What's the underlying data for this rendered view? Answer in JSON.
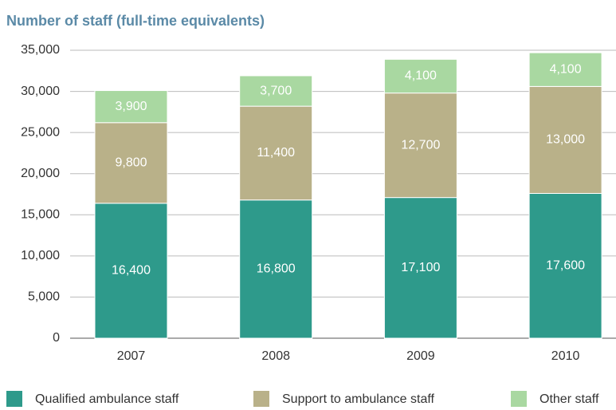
{
  "chart_data": {
    "type": "stacked_bar",
    "title": "Number of staff (full-time equivalents)",
    "categories": [
      "2007",
      "2008",
      "2009",
      "2010"
    ],
    "series": [
      {
        "name": "Qualified ambulance staff",
        "color": "#2e9a8b",
        "values": [
          16400,
          16800,
          17100,
          17600
        ],
        "value_labels": [
          "16,400",
          "16,800",
          "17,100",
          "17,600"
        ]
      },
      {
        "name": "Support to ambulance staff",
        "color": "#b9b189",
        "values": [
          9800,
          11400,
          12700,
          13000
        ],
        "value_labels": [
          "9,800",
          "11,400",
          "12,700",
          "13,000"
        ]
      },
      {
        "name": "Other staff",
        "color": "#a9d8a1",
        "values": [
          3900,
          3700,
          4100,
          4100
        ],
        "value_labels": [
          "3,900",
          "3,700",
          "4,100",
          "4,100"
        ]
      }
    ],
    "ylim": [
      0,
      35000
    ],
    "yticks": [
      0,
      {
        "value": 5000,
        "label": "5,000"
      },
      {
        "value": 10000,
        "label": "10,000"
      },
      {
        "value": 15000,
        "label": "15,000"
      },
      {
        "value": 20000,
        "label": "20,000"
      },
      {
        "value": 25000,
        "label": "25,000"
      },
      {
        "value": 30000,
        "label": "30,000"
      },
      {
        "value": 35000,
        "label": "35,000"
      }
    ],
    "grid": true
  }
}
